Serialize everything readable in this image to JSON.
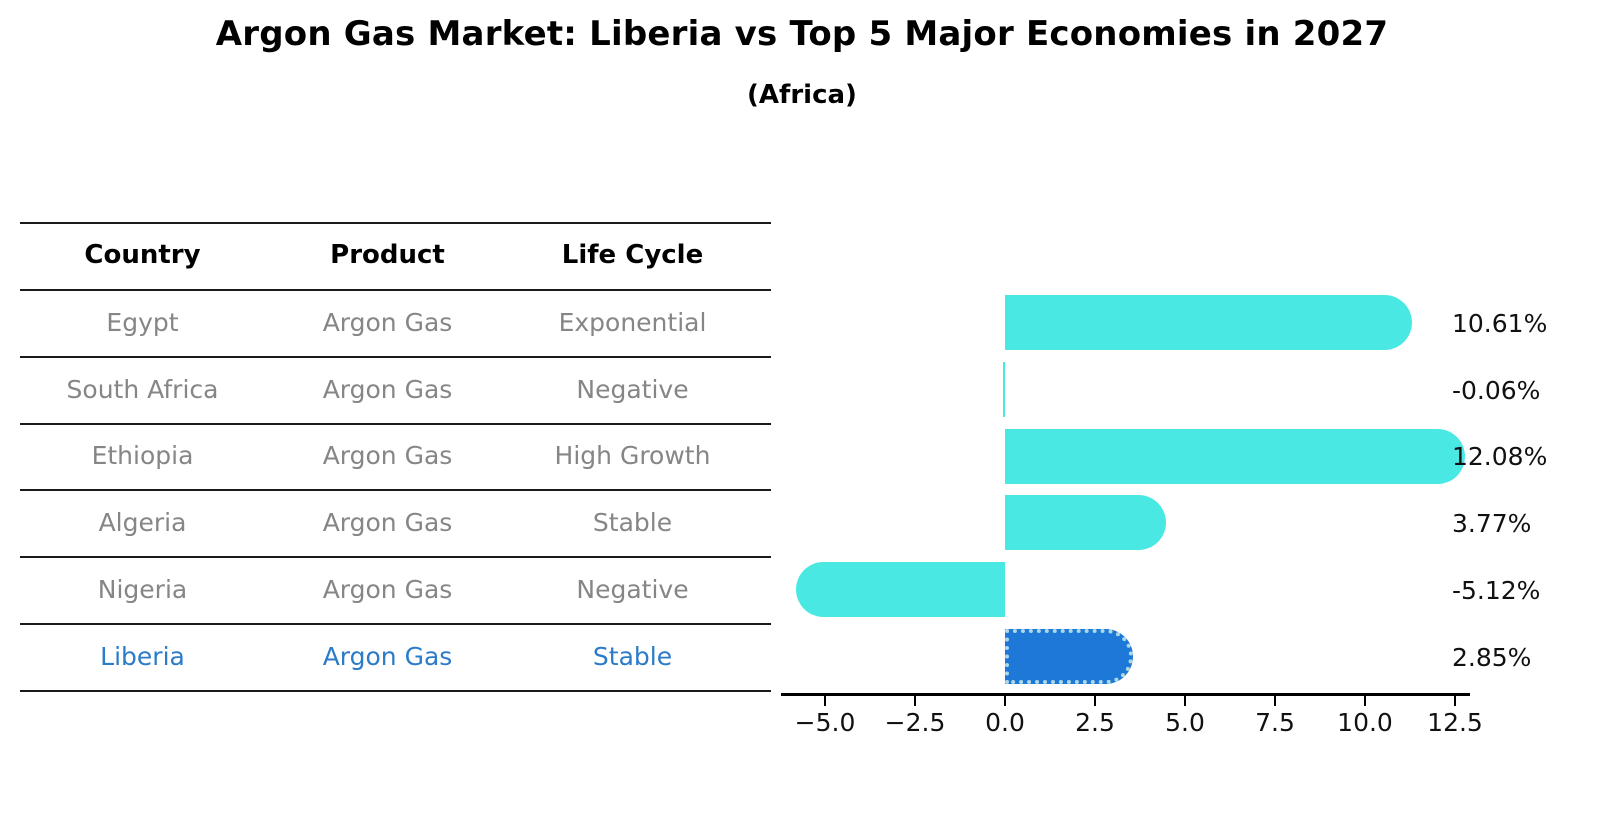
{
  "title": "Argon Gas Market: Liberia vs Top 5 Major Economies in 2027",
  "subtitle": "(Africa)",
  "table": {
    "headers": [
      "Country",
      "Product",
      "Life Cycle"
    ],
    "rows": [
      {
        "country": "Egypt",
        "product": "Argon Gas",
        "life_cycle": "Exponential",
        "highlight": false
      },
      {
        "country": "South Africa",
        "product": "Argon Gas",
        "life_cycle": "Negative",
        "highlight": false
      },
      {
        "country": "Ethiopia",
        "product": "Argon Gas",
        "life_cycle": "High Growth",
        "highlight": false
      },
      {
        "country": "Algeria",
        "product": "Argon Gas",
        "life_cycle": "Stable",
        "highlight": false
      },
      {
        "country": "Nigeria",
        "product": "Argon Gas",
        "life_cycle": "Negative",
        "highlight": false
      },
      {
        "country": "Liberia",
        "product": "Argon Gas",
        "life_cycle": "Stable",
        "highlight": true
      }
    ]
  },
  "chart_data": {
    "type": "bar",
    "orientation": "horizontal",
    "categories": [
      "Egypt",
      "South Africa",
      "Ethiopia",
      "Algeria",
      "Nigeria",
      "Liberia"
    ],
    "values": [
      10.61,
      -0.06,
      12.08,
      3.77,
      -5.12,
      2.85
    ],
    "value_labels": [
      "10.61%",
      "-0.06%",
      "12.08%",
      "3.77%",
      "-5.12%",
      "2.85%"
    ],
    "x_tick_labels": [
      "−5.0",
      "−2.5",
      "0.0",
      "2.5",
      "5.0",
      "7.5",
      "10.0",
      "12.5"
    ],
    "x_tick_values": [
      -5.0,
      -2.5,
      0.0,
      2.5,
      5.0,
      7.5,
      10.0,
      12.5
    ],
    "xlim": [
      -6.2,
      12.9
    ],
    "grid": false,
    "legend": false,
    "highlight_index": 5,
    "colors": {
      "bar": "#4AE8E2",
      "highlight_bar": "#1E78D8",
      "highlight_edge": "#ADD8E6",
      "value_label": "#111111",
      "table_text": "#868686",
      "table_highlight_text": "#2B7BC9",
      "rule": "#1a1a1a"
    }
  }
}
